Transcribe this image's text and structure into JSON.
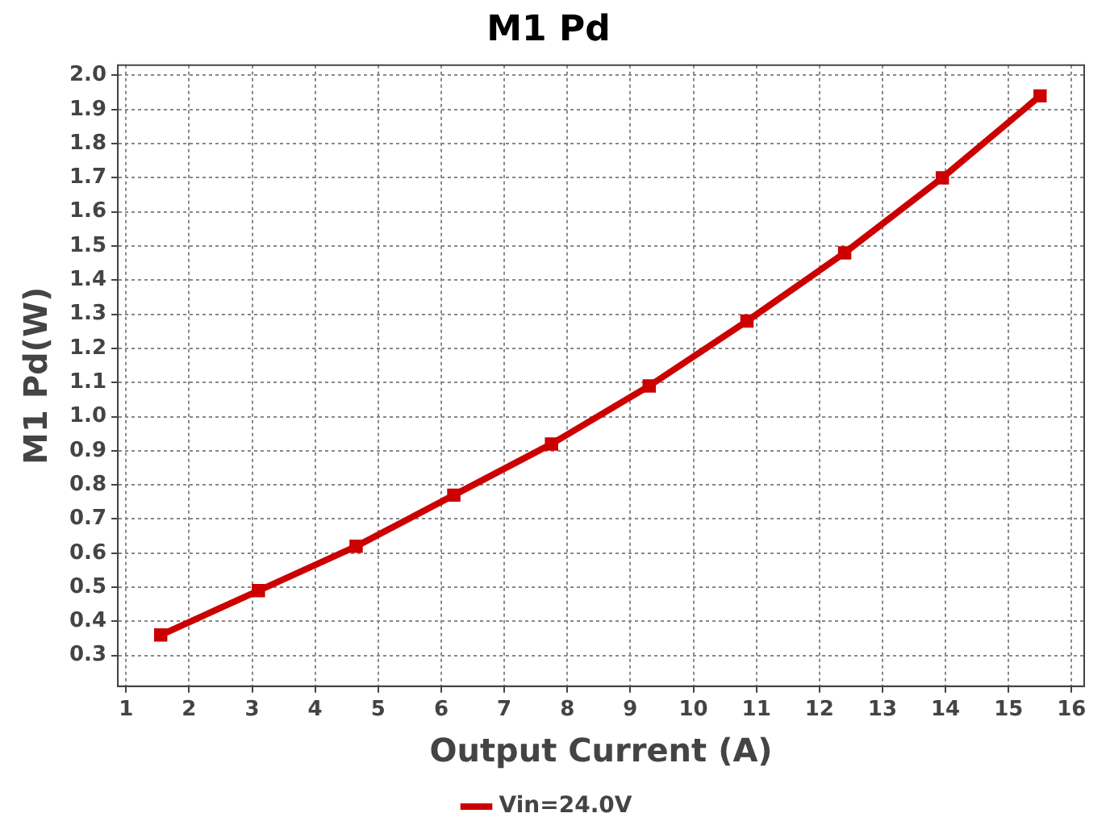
{
  "chart_data": {
    "type": "line",
    "title": "M1 Pd",
    "xlabel": "Output Current (A)",
    "ylabel": "M1 Pd(W)",
    "x": [
      1.55,
      3.1,
      4.65,
      6.2,
      7.75,
      9.3,
      10.85,
      12.4,
      13.95,
      15.5
    ],
    "series": [
      {
        "name": "Vin=24.0V",
        "color": "#cc0000",
        "values": [
          0.36,
          0.49,
          0.62,
          0.77,
          0.92,
          1.09,
          1.28,
          1.48,
          1.7,
          1.94
        ]
      }
    ],
    "xlim": [
      0.87,
      16.2
    ],
    "xticks": [
      1,
      2,
      3,
      4,
      5,
      6,
      7,
      8,
      9,
      10,
      11,
      12,
      13,
      14,
      15,
      16
    ],
    "ylim": [
      0.21,
      2.03
    ],
    "yticks": [
      0.3,
      0.4,
      0.5,
      0.6,
      0.7,
      0.8,
      0.9,
      {
        "value": 1,
        "label": "1.0"
      },
      1.1,
      1.2,
      1.3,
      1.4,
      1.5,
      1.6,
      1.7,
      1.8,
      1.9,
      {
        "value": 2,
        "label": "2.0"
      }
    ],
    "grid": true,
    "legend": "bottom",
    "marker": "square",
    "line_style": "solid"
  }
}
